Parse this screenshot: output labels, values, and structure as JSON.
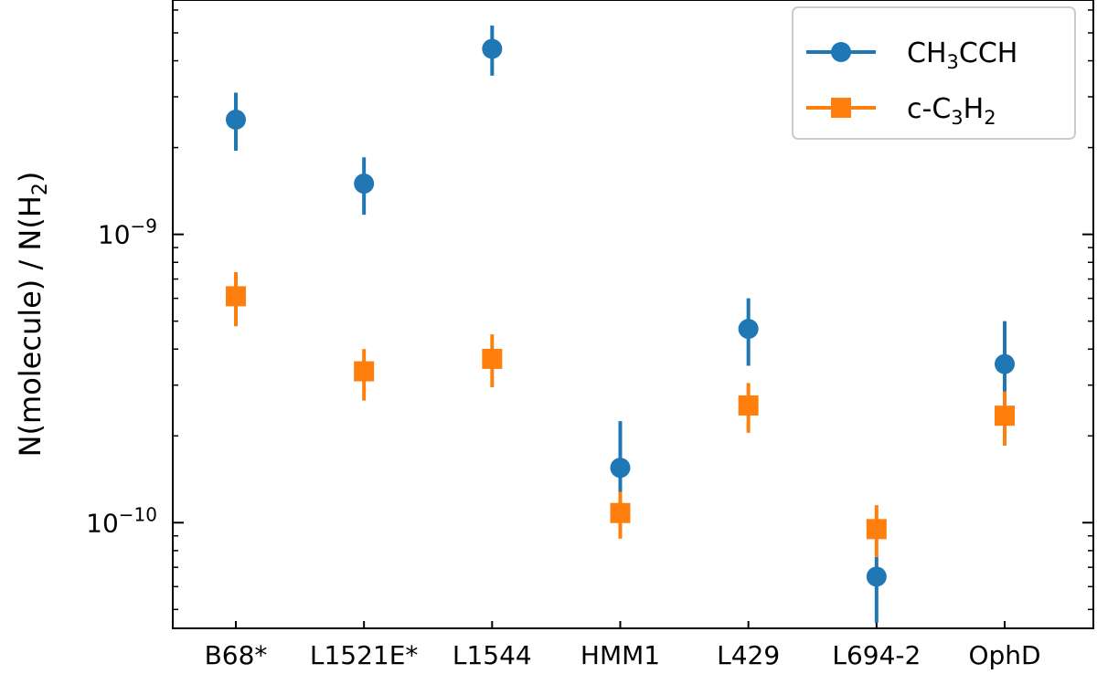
{
  "chart_data": {
    "type": "scatter",
    "title": "",
    "xlabel": "",
    "ylabel_parts": {
      "a": "N(molecule) / N(H",
      "sub": "2",
      "b": ")"
    },
    "yscale": "log",
    "ylim": [
      4.3e-11,
      6.5e-09
    ],
    "y_ticks": [
      {
        "value": 1e-09,
        "base": "10",
        "exp": "−9"
      },
      {
        "value": 1e-10,
        "base": "10",
        "exp": "−10"
      }
    ],
    "categories": [
      "B68*",
      "L1521E*",
      "L1544",
      "HMM1",
      "L429",
      "L694-2",
      "OphD"
    ],
    "grid": false,
    "legend_position": "top-right",
    "series": [
      {
        "name": "CH3CCH",
        "name_parts": {
          "a": "CH",
          "sub": "3",
          "b": "CCH"
        },
        "color": "#1f77b4",
        "marker": "circle",
        "values": [
          2.5e-09,
          1.5e-09,
          4.4e-09,
          1.55e-10,
          4.7e-10,
          6.5e-11,
          3.55e-10
        ],
        "err_low": [
          1.95e-09,
          1.17e-09,
          3.55e-09,
          1.2e-10,
          3.5e-10,
          4.5e-11,
          2.8e-10
        ],
        "err_high": [
          3.1e-09,
          1.85e-09,
          5.3e-09,
          2.25e-10,
          6e-10,
          7.6e-11,
          5e-10
        ]
      },
      {
        "name": "c-C3H2",
        "name_parts": {
          "a": "c-C",
          "sub": "3",
          "b": "H",
          "sub2": "2"
        },
        "color": "#ff7f0e",
        "marker": "square",
        "values": [
          6.1e-10,
          3.35e-10,
          3.7e-10,
          1.08e-10,
          2.55e-10,
          9.5e-11,
          2.35e-10
        ],
        "err_low": [
          4.8e-10,
          2.65e-10,
          2.95e-10,
          8.8e-11,
          2.05e-10,
          7.6e-11,
          1.85e-10
        ],
        "err_high": [
          7.4e-10,
          4e-10,
          4.5e-10,
          1.28e-10,
          3.05e-10,
          1.15e-10,
          2.85e-10
        ]
      }
    ]
  }
}
